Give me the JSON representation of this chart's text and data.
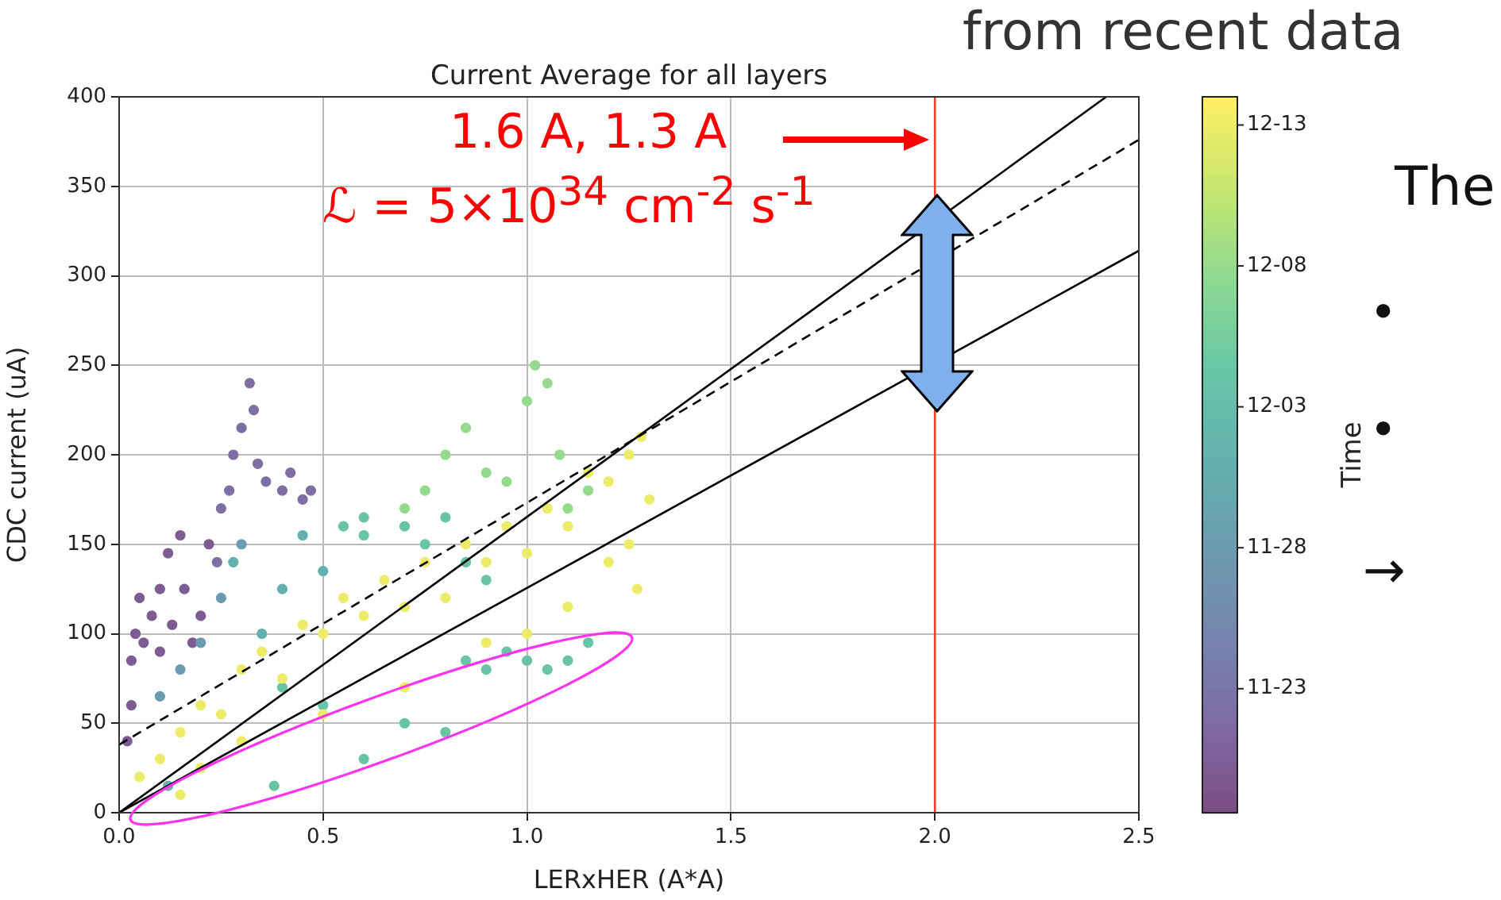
{
  "chart_data": {
    "type": "scatter",
    "title": "Current Average for all layers",
    "xlabel": "LERxHER (A*A)",
    "ylabel": "CDC current (uA)",
    "clabel": "Time",
    "xlim": [
      0,
      2.5
    ],
    "xticks": [
      {
        "value": 0,
        "label": "0.0"
      },
      {
        "value": 0.5,
        "label": "0.5"
      },
      {
        "value": 1,
        "label": "1.0"
      },
      {
        "value": 1.5,
        "label": "1.5"
      },
      {
        "value": 2,
        "label": "2.0"
      },
      {
        "value": 2.5,
        "label": "2.5"
      }
    ],
    "ylim": [
      0,
      400
    ],
    "yticks": [
      0,
      50,
      100,
      150,
      200,
      250,
      300,
      350,
      400
    ],
    "clim": [
      -4.4,
      21
    ],
    "cticks": [
      {
        "value": 0,
        "label": "11-23"
      },
      {
        "value": 5,
        "label": "11-28"
      },
      {
        "value": 10,
        "label": "12-03"
      },
      {
        "value": 15,
        "label": "12-08"
      },
      {
        "value": 20,
        "label": "12-13"
      }
    ],
    "grid": true,
    "legend": false,
    "series": [
      {
        "type": "scatter",
        "marker": "circle",
        "x": [
          0.02,
          0.03,
          0.03,
          0.04,
          0.05,
          0.06,
          0.08,
          0.1,
          0.1,
          0.12,
          0.13,
          0.15,
          0.16,
          0.18,
          0.2,
          0.22,
          0.24,
          0.25,
          0.27,
          0.28,
          0.3,
          0.32,
          0.33,
          0.34,
          0.36,
          0.4,
          0.42,
          0.45,
          0.47,
          0.1,
          0.15,
          0.2,
          0.25,
          0.28,
          0.3,
          0.35,
          0.4,
          0.45,
          0.5,
          0.55,
          0.6,
          0.6,
          0.7,
          0.75,
          0.8,
          0.85,
          0.9,
          0.4,
          0.5,
          0.7,
          0.8,
          0.85,
          0.9,
          0.95,
          1.0,
          1.05,
          1.1,
          1.15,
          0.6,
          0.38,
          0.12,
          0.8,
          0.85,
          0.9,
          0.95,
          1.0,
          1.02,
          1.05,
          1.08,
          1.1,
          0.75,
          0.7,
          1.15,
          0.05,
          0.1,
          0.15,
          0.2,
          0.25,
          0.3,
          0.35,
          0.4,
          0.45,
          0.5,
          0.55,
          0.6,
          0.65,
          0.7,
          0.75,
          0.8,
          0.85,
          0.9,
          0.95,
          1.0,
          1.05,
          1.1,
          1.15,
          1.2,
          1.25,
          1.28,
          1.3,
          1.25,
          1.2,
          1.27,
          1.1,
          1.0,
          0.9,
          0.7,
          0.5,
          0.3,
          0.2,
          0.15
        ],
        "values": [
          40,
          60,
          85,
          100,
          120,
          95,
          110,
          90,
          125,
          145,
          105,
          155,
          125,
          95,
          110,
          150,
          140,
          170,
          180,
          200,
          215,
          240,
          225,
          195,
          185,
          180,
          190,
          175,
          180,
          65,
          80,
          95,
          120,
          140,
          150,
          100,
          125,
          155,
          135,
          160,
          155,
          165,
          160,
          150,
          165,
          140,
          130,
          70,
          60,
          50,
          45,
          85,
          80,
          90,
          85,
          80,
          85,
          95,
          30,
          15,
          15,
          200,
          215,
          190,
          185,
          230,
          250,
          240,
          200,
          170,
          180,
          170,
          180,
          20,
          30,
          45,
          60,
          55,
          80,
          90,
          75,
          105,
          100,
          120,
          110,
          130,
          115,
          140,
          120,
          150,
          140,
          160,
          145,
          170,
          160,
          190,
          185,
          200,
          210,
          175,
          150,
          140,
          125,
          115,
          100,
          95,
          70,
          55,
          40,
          25,
          10
        ],
        "cvalues": [
          -3,
          -3,
          -3,
          -3,
          -3,
          -3,
          -3,
          -3,
          -3,
          -3,
          -3,
          -3,
          -3,
          -3,
          -3,
          -3,
          -1,
          -1,
          -1,
          -1,
          -1,
          -1,
          -1,
          -1,
          -1,
          -1,
          -1,
          -1,
          -1,
          5,
          5,
          5,
          5,
          8,
          5,
          8,
          8,
          8,
          8,
          11,
          11,
          11,
          11,
          11,
          11,
          11,
          11,
          11,
          11,
          11,
          11,
          11,
          11,
          11,
          11,
          11,
          11,
          11,
          11,
          11,
          8,
          15,
          15,
          15,
          15,
          15,
          15,
          15,
          15,
          15,
          15,
          15,
          15,
          20,
          20,
          20,
          20,
          20,
          20,
          20,
          20,
          20,
          20,
          20,
          20,
          20,
          20,
          20,
          20,
          20,
          20,
          20,
          20,
          20,
          20,
          20,
          20,
          20,
          20,
          20,
          20,
          20,
          20,
          20,
          20,
          20,
          20,
          20,
          20,
          20,
          20
        ],
        "colors": [
          "#7d5b93",
          "#7d5b93",
          "#7d5b93",
          "#7d5b93",
          "#7d5b93",
          "#7d5b93",
          "#7d5b93",
          "#7d5b93",
          "#7d5b93",
          "#7d5b93",
          "#7d5b93",
          "#7d5b93",
          "#7d5b93",
          "#7d5b93",
          "#7d5b93",
          "#7d5b93",
          "#7e6ea3",
          "#7e6ea3",
          "#7e6ea3",
          "#7e6ea3",
          "#7e6ea3",
          "#7e6ea3",
          "#7e6ea3",
          "#7e6ea3",
          "#7e6ea3",
          "#7e6ea3",
          "#7e6ea3",
          "#7e6ea3",
          "#7e6ea3",
          "#6c9bb0",
          "#6c9bb0",
          "#6c9bb0",
          "#6c9bb0",
          "#64b0af",
          "#6c9bb0",
          "#64b0af",
          "#64b0af",
          "#64b0af",
          "#64b0af",
          "#68c3a7",
          "#68c3a7",
          "#68c3a7",
          "#68c3a7",
          "#68c3a7",
          "#68c3a7",
          "#68c3a7",
          "#68c3a7",
          "#68c3a7",
          "#68c3a7",
          "#68c3a7",
          "#68c3a7",
          "#68c3a7",
          "#68c3a7",
          "#68c3a7",
          "#68c3a7",
          "#68c3a7",
          "#68c3a7",
          "#68c3a7",
          "#68c3a7",
          "#68c3a7",
          "#64b0af",
          "#94db8d",
          "#94db8d",
          "#94db8d",
          "#94db8d",
          "#94db8d",
          "#94db8d",
          "#94db8d",
          "#94db8d",
          "#94db8d",
          "#94db8d",
          "#94db8d",
          "#94db8d",
          "#ecec69",
          "#ecec69",
          "#ecec69",
          "#ecec69",
          "#ecec69",
          "#ecec69",
          "#ecec69",
          "#ecec69",
          "#ecec69",
          "#ecec69",
          "#ecec69",
          "#ecec69",
          "#ecec69",
          "#ecec69",
          "#ecec69",
          "#ecec69",
          "#ecec69",
          "#ecec69",
          "#ecec69",
          "#ecec69",
          "#ecec69",
          "#ecec69",
          "#ecec69",
          "#ecec69",
          "#ecec69",
          "#ecec69",
          "#ecec69",
          "#ecec69",
          "#ecec69",
          "#ecec69",
          "#ecec69",
          "#ecec69",
          "#ecec69",
          "#ecec69",
          "#ecec69",
          "#ecec69",
          "#ecec69",
          "#ecec69"
        ]
      },
      {
        "type": "line",
        "x": [
          0,
          2.42
        ],
        "values": [
          0,
          400
        ],
        "color": "#000000",
        "line_style": "solid",
        "marker": "none"
      },
      {
        "type": "line",
        "x": [
          0,
          2.5
        ],
        "values": [
          38,
          376
        ],
        "color": "#000000",
        "line_style": "dashed",
        "marker": "none"
      },
      {
        "type": "line",
        "x": [
          0,
          2.5
        ],
        "values": [
          0,
          314
        ],
        "color": "#000000",
        "line_style": "solid",
        "marker": "none"
      }
    ],
    "ref_lines": [
      {
        "axis": "x",
        "value": 2,
        "color": "#e8402a"
      }
    ],
    "annotations": [
      "from recent data",
      "1.6 A, 1.3 A",
      "ℒ = 5×10$^{34}$ cm$^{-2}$ s$^{-1}$",
      "The",
      "•",
      "•",
      "→"
    ]
  }
}
